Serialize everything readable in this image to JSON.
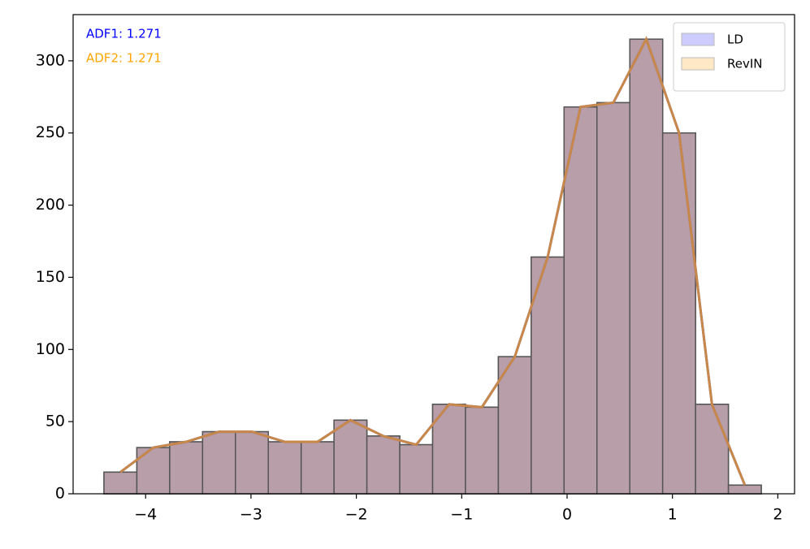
{
  "chart_data": {
    "type": "histogram",
    "bins": [
      -4.395,
      -4.0831,
      -3.7712,
      -3.4593,
      -3.1474,
      -2.8355,
      -2.5236,
      -2.2117,
      -1.8998,
      -1.5879,
      -1.276,
      -0.9641,
      -0.6522,
      -0.3403,
      -0.0284,
      0.2835,
      0.5954,
      0.9073,
      1.2192,
      1.5311,
      1.843
    ],
    "series": [
      {
        "name": "LD",
        "color": "#ccccff",
        "bar_color": "#b89ea8",
        "line_color": "#6a5acd",
        "values": [
          15,
          32,
          36,
          43,
          43,
          36,
          36,
          51,
          40,
          34,
          62,
          60,
          95,
          164,
          268,
          271,
          315,
          250,
          62,
          6
        ]
      },
      {
        "name": "RevIN",
        "color": "#ffe8c6",
        "bar_color": "#b89ea8",
        "line_color": "#c8884a",
        "values": [
          15,
          32,
          36,
          43,
          43,
          36,
          36,
          51,
          40,
          34,
          62,
          60,
          95,
          164,
          268,
          271,
          315,
          250,
          62,
          6
        ]
      }
    ],
    "annotations": [
      {
        "text": "ADF1: 1.271",
        "color": "#0000ff"
      },
      {
        "text": "ADF2: 1.271",
        "color": "#ffa500"
      }
    ],
    "xlim": [
      -4.688,
      2.159
    ],
    "xticks": [
      {
        "value": -4,
        "label": "−4"
      },
      {
        "value": -3,
        "label": "−3"
      },
      {
        "value": -2,
        "label": "−2"
      },
      {
        "value": -1,
        "label": "−1"
      },
      0,
      1,
      2
    ],
    "ylim": [
      0,
      332
    ],
    "yticks": [
      0,
      50,
      100,
      150,
      200,
      250,
      300
    ],
    "legend": "upper right"
  }
}
